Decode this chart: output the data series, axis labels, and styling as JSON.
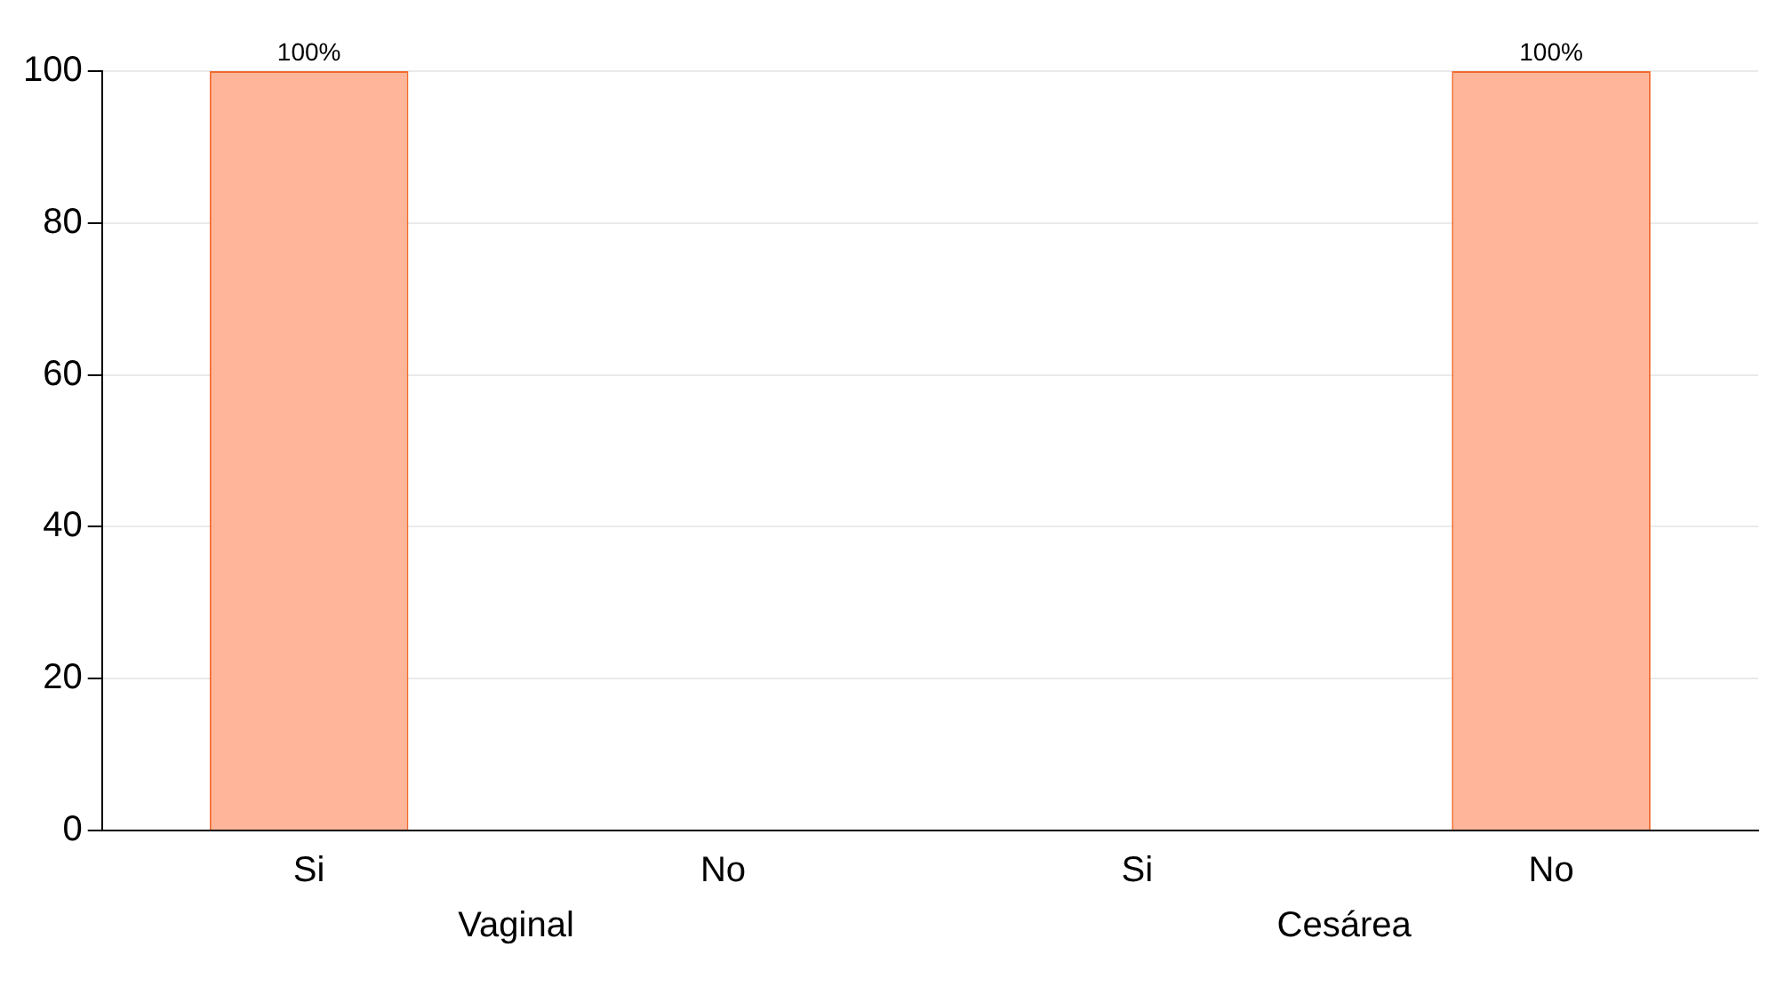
{
  "chart_data": {
    "type": "bar",
    "categories": [
      "Si",
      "No",
      "Si",
      "No"
    ],
    "values": [
      100,
      0,
      0,
      100
    ],
    "value_labels": [
      "100%",
      null,
      null,
      "100%"
    ],
    "color": "#ffb599",
    "ylim": [
      0,
      100
    ],
    "yticks": [
      0,
      20,
      40,
      60,
      80,
      100
    ],
    "grid": "y",
    "legend": false,
    "annotations": [
      "Vaginal",
      "Cesárea"
    ]
  }
}
